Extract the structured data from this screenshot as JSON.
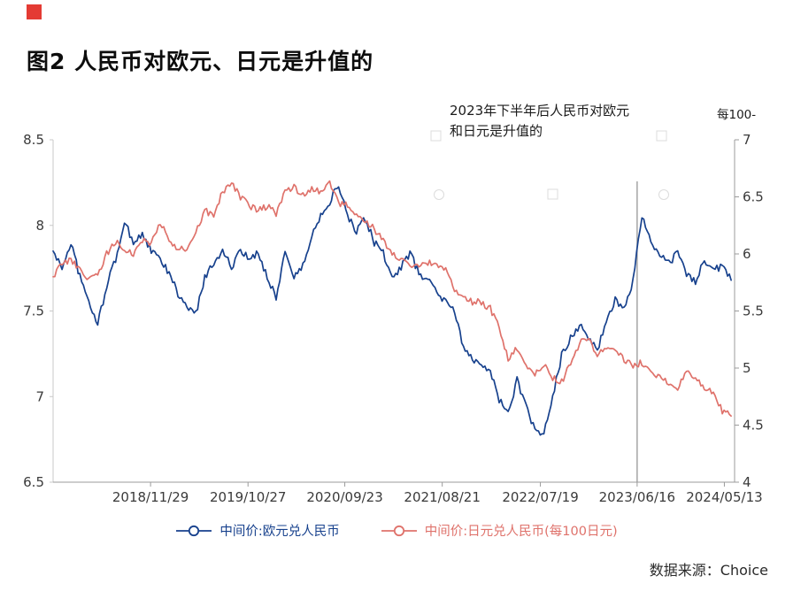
{
  "page": {
    "title": "图2  人民币对欧元、日元是升值的",
    "source": "数据来源：Choice",
    "accent_red": "#e43b34"
  },
  "chart_data": {
    "type": "line",
    "title": "图2  人民币对欧元、日元是升值的",
    "annotation": "2023年下半年后人民币对欧元\n和日元是升值的",
    "right_axis_header": "每100-",
    "annotation_line_x": 0.857,
    "x_end_fraction": 0.995,
    "left_axis": {
      "min": 6.5,
      "max": 8.5,
      "ticks": [
        8.5,
        8,
        7.5,
        7,
        6.5
      ]
    },
    "right_axis": {
      "min": 4,
      "max": 7,
      "ticks": [
        7,
        6.5,
        6,
        5.5,
        5,
        4.5,
        4
      ]
    },
    "x_ticks": [
      {
        "label": "2018/11/29",
        "f": 0.143
      },
      {
        "label": "2019/10/27",
        "f": 0.286
      },
      {
        "label": "2020/09/23",
        "f": 0.428
      },
      {
        "label": "2021/08/21",
        "f": 0.571
      },
      {
        "label": "2022/07/19",
        "f": 0.715
      },
      {
        "label": "2023/06/16",
        "f": 0.857
      },
      {
        "label": "2024/05/13",
        "f": 0.985
      }
    ],
    "series": [
      {
        "name": "中间价:欧元兑人民币",
        "axis": "left",
        "color": "#17418d",
        "period": "monthly 2018/01 - 2024/05",
        "values": [
          7.85,
          7.75,
          7.9,
          7.7,
          7.55,
          7.42,
          7.65,
          7.8,
          8.02,
          7.9,
          7.95,
          7.85,
          7.8,
          7.72,
          7.6,
          7.52,
          7.48,
          7.7,
          7.78,
          7.86,
          7.75,
          7.85,
          7.8,
          7.84,
          7.7,
          7.58,
          7.85,
          7.7,
          7.76,
          7.94,
          8.06,
          8.14,
          8.24,
          8.05,
          7.96,
          8.04,
          7.9,
          7.84,
          7.68,
          7.76,
          7.84,
          7.72,
          7.68,
          7.62,
          7.55,
          7.5,
          7.28,
          7.22,
          7.2,
          7.15,
          6.98,
          6.9,
          7.1,
          6.94,
          6.8,
          6.78,
          7.0,
          7.24,
          7.34,
          7.42,
          7.34,
          7.28,
          7.42,
          7.57,
          7.51,
          7.68,
          8.05,
          7.9,
          7.82,
          7.78,
          7.84,
          7.72,
          7.67,
          7.8,
          7.73,
          7.77,
          7.68
        ]
      },
      {
        "name": "中间价:日元兑人民币(每100日元)",
        "axis": "right",
        "color": "#df726b",
        "period": "monthly 2018/01 - 2024/05",
        "values": [
          5.8,
          5.92,
          5.95,
          5.85,
          5.78,
          5.82,
          6.0,
          6.1,
          6.05,
          6.0,
          6.12,
          6.1,
          6.28,
          6.12,
          6.05,
          6.02,
          6.18,
          6.38,
          6.32,
          6.55,
          6.62,
          6.5,
          6.42,
          6.38,
          6.42,
          6.35,
          6.55,
          6.58,
          6.52,
          6.58,
          6.55,
          6.62,
          6.45,
          6.42,
          6.32,
          6.28,
          6.22,
          6.12,
          6.0,
          5.95,
          5.92,
          5.88,
          5.92,
          5.9,
          5.85,
          5.68,
          5.62,
          5.58,
          5.58,
          5.52,
          5.35,
          5.08,
          5.18,
          5.0,
          4.95,
          5.02,
          4.92,
          4.88,
          5.05,
          5.22,
          5.25,
          5.12,
          5.18,
          5.15,
          5.08,
          5.02,
          5.05,
          4.98,
          4.92,
          4.88,
          4.82,
          4.98,
          4.92,
          4.82,
          4.78,
          4.62,
          4.58
        ]
      }
    ]
  }
}
